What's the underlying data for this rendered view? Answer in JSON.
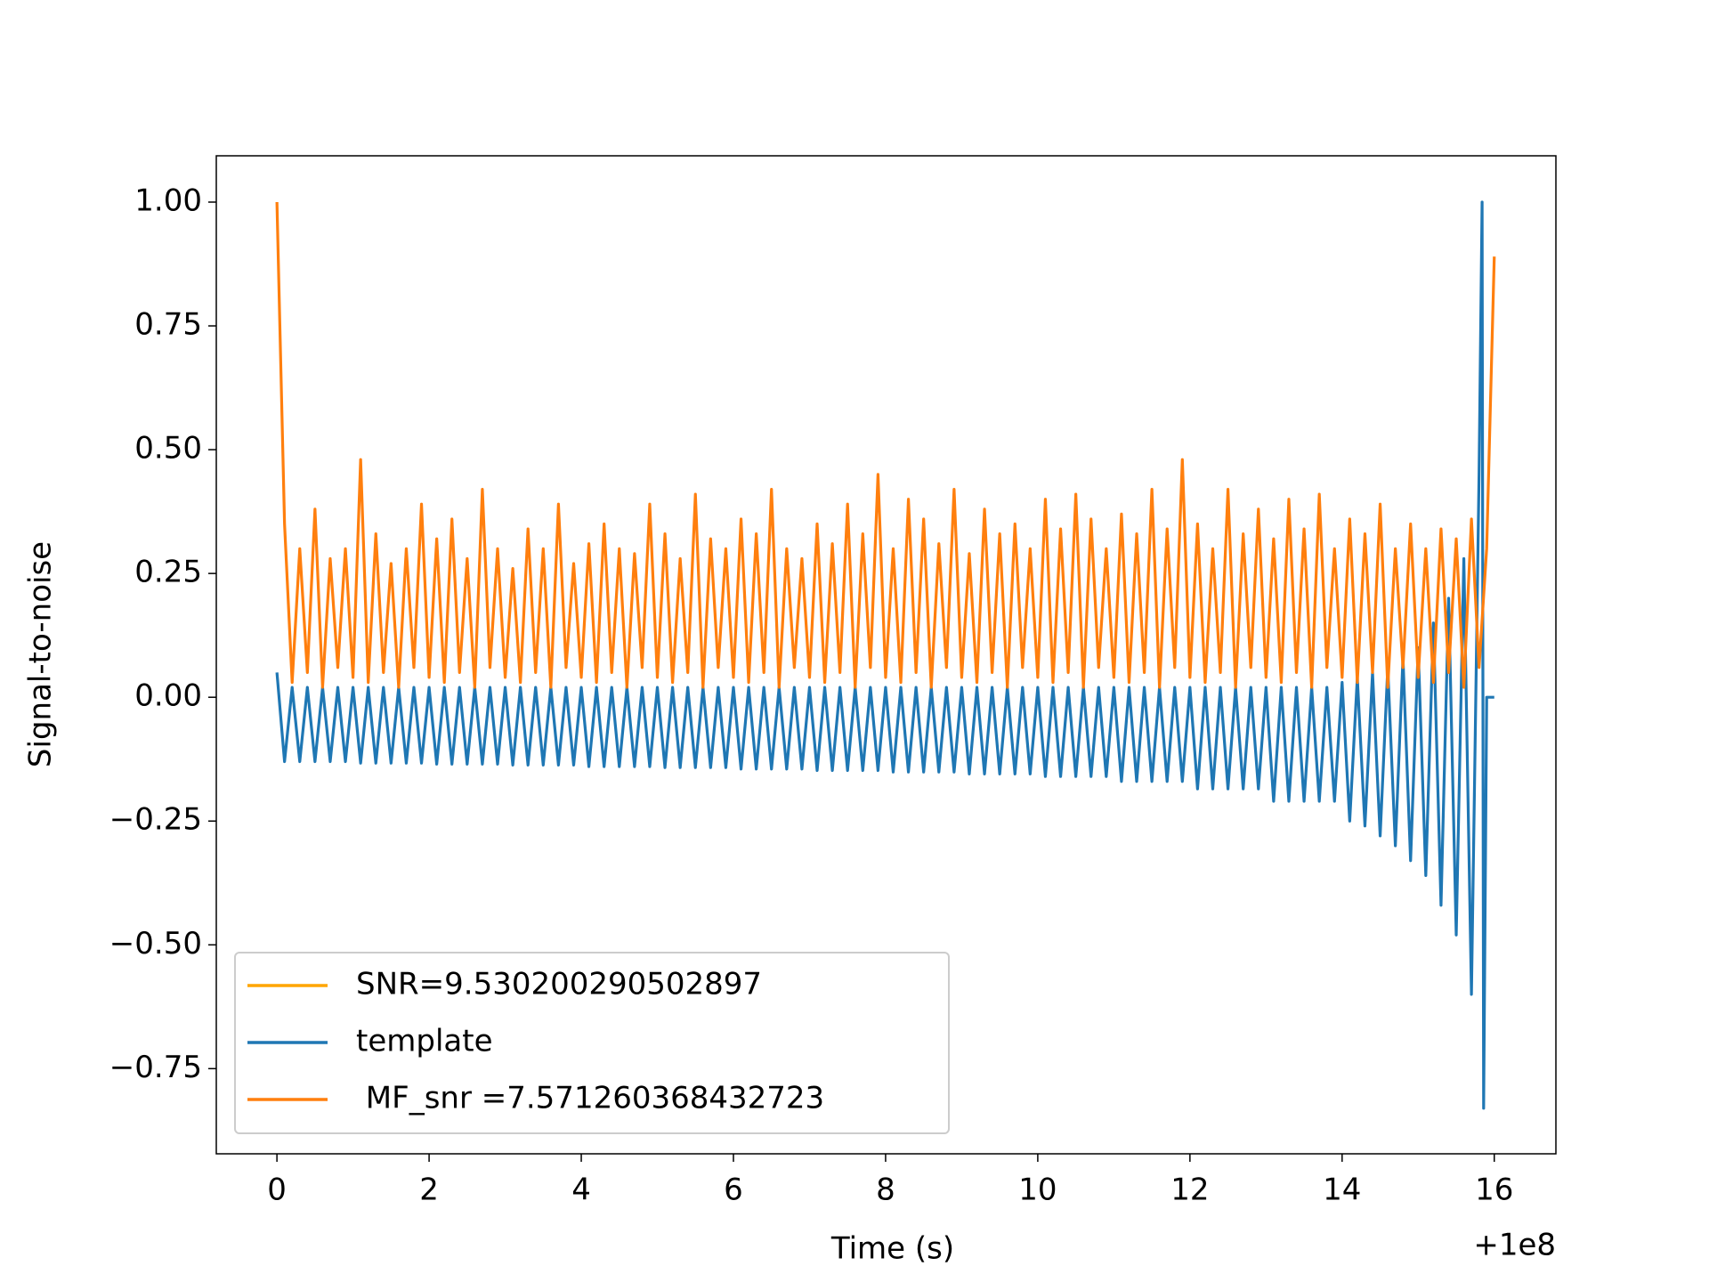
{
  "chart_data": {
    "type": "line",
    "xlabel": "Time (s)",
    "ylabel": "Signal-to-noise",
    "x_offset_label": "+1e8",
    "xlim": [
      -0.797,
      16.81
    ],
    "ylim": [
      -0.922,
      1.0935
    ],
    "xticks": [
      0,
      2,
      4,
      6,
      8,
      10,
      12,
      14,
      16
    ],
    "yticks": [
      {
        "value": -0.75,
        "label": "−0.75"
      },
      {
        "value": -0.5,
        "label": "−0.50"
      },
      {
        "value": -0.25,
        "label": "−0.25"
      },
      {
        "value": 0,
        "label": "0.00"
      },
      {
        "value": 0.25,
        "label": "0.25"
      },
      {
        "value": 0.5,
        "label": "0.50"
      },
      {
        "value": 0.75,
        "label": "0.75"
      },
      {
        "value": 1,
        "label": "1.00"
      }
    ],
    "grid": false,
    "legend": "lower left",
    "series": [
      {
        "name": "SNR=9.530200290502897",
        "color": "#ffa500",
        "x": [],
        "values": []
      },
      {
        "name": "template",
        "color": "#1f77b4",
        "x": [
          0,
          0.1,
          0.2,
          0.3,
          0.4,
          0.5,
          0.6,
          0.7,
          0.8,
          0.9,
          1,
          1.1,
          1.2,
          1.3,
          1.4,
          1.5,
          1.6,
          1.7,
          1.8,
          1.9,
          2,
          2.1,
          2.2,
          2.3,
          2.4,
          2.5,
          2.6,
          2.7,
          2.8,
          2.9,
          3,
          3.1,
          3.2,
          3.3,
          3.4,
          3.5,
          3.6,
          3.7,
          3.8,
          3.9,
          4,
          4.1,
          4.2,
          4.3,
          4.4,
          4.5,
          4.6,
          4.7,
          4.8,
          4.9,
          5,
          5.1,
          5.2,
          5.3,
          5.4,
          5.5,
          5.6,
          5.7,
          5.8,
          5.9,
          6,
          6.1,
          6.2,
          6.3,
          6.4,
          6.5,
          6.6,
          6.7,
          6.8,
          6.9,
          7,
          7.1,
          7.2,
          7.3,
          7.4,
          7.5,
          7.6,
          7.7,
          7.8,
          7.9,
          8,
          8.1,
          8.2,
          8.3,
          8.4,
          8.5,
          8.6,
          8.7,
          8.8,
          8.9,
          9,
          9.1,
          9.2,
          9.3,
          9.4,
          9.5,
          9.6,
          9.7,
          9.8,
          9.9,
          10,
          10.1,
          10.2,
          10.3,
          10.4,
          10.5,
          10.6,
          10.7,
          10.8,
          10.9,
          11,
          11.1,
          11.2,
          11.3,
          11.4,
          11.5,
          11.6,
          11.7,
          11.8,
          11.9,
          12,
          12.1,
          12.2,
          12.3,
          12.4,
          12.5,
          12.6,
          12.7,
          12.8,
          12.9,
          13,
          13.1,
          13.2,
          13.3,
          13.4,
          13.5,
          13.6,
          13.7,
          13.8,
          13.9,
          14,
          14.1,
          14.2,
          14.3,
          14.4,
          14.5,
          14.6,
          14.7,
          14.8,
          14.9,
          15,
          15.1,
          15.2,
          15.3,
          15.4,
          15.5,
          15.6,
          15.7,
          15.8,
          15.84,
          15.86,
          15.9,
          16
        ],
        "values": [
          0.05,
          -0.13,
          0.02,
          -0.13,
          0.02,
          -0.13,
          0.02,
          -0.13,
          0.02,
          -0.13,
          0.02,
          -0.133,
          0.02,
          -0.133,
          0.02,
          -0.133,
          0.02,
          -0.133,
          0.02,
          -0.133,
          0.02,
          -0.135,
          0.02,
          -0.135,
          0.02,
          -0.135,
          0.02,
          -0.135,
          0.02,
          -0.135,
          0.02,
          -0.137,
          0.02,
          -0.137,
          0.02,
          -0.137,
          0.02,
          -0.137,
          0.02,
          -0.137,
          0.02,
          -0.14,
          0.02,
          -0.14,
          0.02,
          -0.14,
          0.02,
          -0.14,
          0.02,
          -0.14,
          0.02,
          -0.142,
          0.02,
          -0.142,
          0.02,
          -0.142,
          0.02,
          -0.142,
          0.02,
          -0.142,
          0.02,
          -0.145,
          0.02,
          -0.145,
          0.02,
          -0.145,
          0.02,
          -0.145,
          0.02,
          -0.145,
          0.02,
          -0.148,
          0.02,
          -0.148,
          0.02,
          -0.148,
          0.02,
          -0.148,
          0.02,
          -0.148,
          0.02,
          -0.151,
          0.02,
          -0.151,
          0.02,
          -0.151,
          0.02,
          -0.151,
          0.02,
          -0.151,
          0.02,
          -0.155,
          0.02,
          -0.155,
          0.02,
          -0.155,
          0.02,
          -0.155,
          0.02,
          -0.155,
          0.02,
          -0.16,
          0.02,
          -0.16,
          0.02,
          -0.16,
          0.02,
          -0.16,
          0.02,
          -0.16,
          0.02,
          -0.17,
          0.02,
          -0.17,
          0.02,
          -0.17,
          0.02,
          -0.17,
          0.02,
          -0.17,
          0.02,
          -0.185,
          0.02,
          -0.185,
          0.02,
          -0.185,
          0.02,
          -0.185,
          0.02,
          -0.185,
          0.02,
          -0.21,
          0.02,
          -0.21,
          0.02,
          -0.21,
          0.02,
          -0.21,
          0.02,
          -0.21,
          0.03,
          -0.25,
          0.04,
          -0.26,
          0.05,
          -0.28,
          0.06,
          -0.3,
          0.08,
          -0.33,
          0.1,
          -0.36,
          0.15,
          -0.42,
          0.2,
          -0.48,
          0.28,
          -0.6,
          0.45,
          1.0,
          -0.83,
          0,
          0
        ]
      },
      {
        "name": " MF_snr =7.571260368432723",
        "color": "#ff7f0e",
        "x": [
          0,
          0.1,
          0.2,
          0.3,
          0.4,
          0.5,
          0.6,
          0.7,
          0.8,
          0.9,
          1,
          1.1,
          1.2,
          1.3,
          1.4,
          1.5,
          1.6,
          1.7,
          1.8,
          1.9,
          2,
          2.1,
          2.2,
          2.3,
          2.4,
          2.5,
          2.6,
          2.7,
          2.8,
          2.9,
          3,
          3.1,
          3.2,
          3.3,
          3.4,
          3.5,
          3.6,
          3.7,
          3.8,
          3.9,
          4,
          4.1,
          4.2,
          4.3,
          4.4,
          4.5,
          4.6,
          4.7,
          4.8,
          4.9,
          5,
          5.1,
          5.2,
          5.3,
          5.4,
          5.5,
          5.6,
          5.7,
          5.8,
          5.9,
          6,
          6.1,
          6.2,
          6.3,
          6.4,
          6.5,
          6.6,
          6.7,
          6.8,
          6.9,
          7,
          7.1,
          7.2,
          7.3,
          7.4,
          7.5,
          7.6,
          7.7,
          7.8,
          7.9,
          8,
          8.1,
          8.2,
          8.3,
          8.4,
          8.5,
          8.6,
          8.7,
          8.8,
          8.9,
          9,
          9.1,
          9.2,
          9.3,
          9.4,
          9.5,
          9.6,
          9.7,
          9.8,
          9.9,
          10,
          10.1,
          10.2,
          10.3,
          10.4,
          10.5,
          10.6,
          10.7,
          10.8,
          10.9,
          11,
          11.1,
          11.2,
          11.3,
          11.4,
          11.5,
          11.6,
          11.7,
          11.8,
          11.9,
          12,
          12.1,
          12.2,
          12.3,
          12.4,
          12.5,
          12.6,
          12.7,
          12.8,
          12.9,
          13,
          13.1,
          13.2,
          13.3,
          13.4,
          13.5,
          13.6,
          13.7,
          13.8,
          13.9,
          14,
          14.1,
          14.2,
          14.3,
          14.4,
          14.5,
          14.6,
          14.7,
          14.8,
          14.9,
          15,
          15.1,
          15.2,
          15.3,
          15.4,
          15.5,
          15.6,
          15.7,
          15.8,
          15.9,
          16
        ],
        "values": [
          1.0,
          0.35,
          0.03,
          0.3,
          0.05,
          0.38,
          0.02,
          0.28,
          0.06,
          0.3,
          0.04,
          0.48,
          0.03,
          0.33,
          0.05,
          0.27,
          0.02,
          0.3,
          0.06,
          0.39,
          0.04,
          0.32,
          0.03,
          0.36,
          0.05,
          0.28,
          0.02,
          0.42,
          0.06,
          0.3,
          0.04,
          0.26,
          0.03,
          0.34,
          0.05,
          0.3,
          0.02,
          0.39,
          0.06,
          0.27,
          0.04,
          0.31,
          0.03,
          0.35,
          0.05,
          0.3,
          0.02,
          0.29,
          0.06,
          0.39,
          0.04,
          0.33,
          0.03,
          0.28,
          0.05,
          0.41,
          0.02,
          0.32,
          0.06,
          0.3,
          0.04,
          0.36,
          0.03,
          0.33,
          0.05,
          0.42,
          0.02,
          0.3,
          0.06,
          0.28,
          0.04,
          0.35,
          0.03,
          0.31,
          0.05,
          0.39,
          0.02,
          0.33,
          0.06,
          0.45,
          0.04,
          0.3,
          0.03,
          0.4,
          0.05,
          0.36,
          0.02,
          0.31,
          0.06,
          0.42,
          0.04,
          0.29,
          0.03,
          0.38,
          0.05,
          0.33,
          0.02,
          0.35,
          0.06,
          0.3,
          0.04,
          0.4,
          0.03,
          0.34,
          0.05,
          0.41,
          0.02,
          0.36,
          0.06,
          0.3,
          0.04,
          0.37,
          0.03,
          0.33,
          0.05,
          0.42,
          0.02,
          0.34,
          0.06,
          0.48,
          0.04,
          0.35,
          0.03,
          0.3,
          0.05,
          0.42,
          0.02,
          0.33,
          0.06,
          0.38,
          0.04,
          0.32,
          0.03,
          0.4,
          0.05,
          0.34,
          0.02,
          0.41,
          0.06,
          0.3,
          0.04,
          0.36,
          0.03,
          0.33,
          0.05,
          0.39,
          0.02,
          0.3,
          0.06,
          0.35,
          0.04,
          0.3,
          0.03,
          0.34,
          0.05,
          0.32,
          0.02,
          0.36,
          0.06,
          0.3,
          0.89
        ]
      }
    ]
  }
}
